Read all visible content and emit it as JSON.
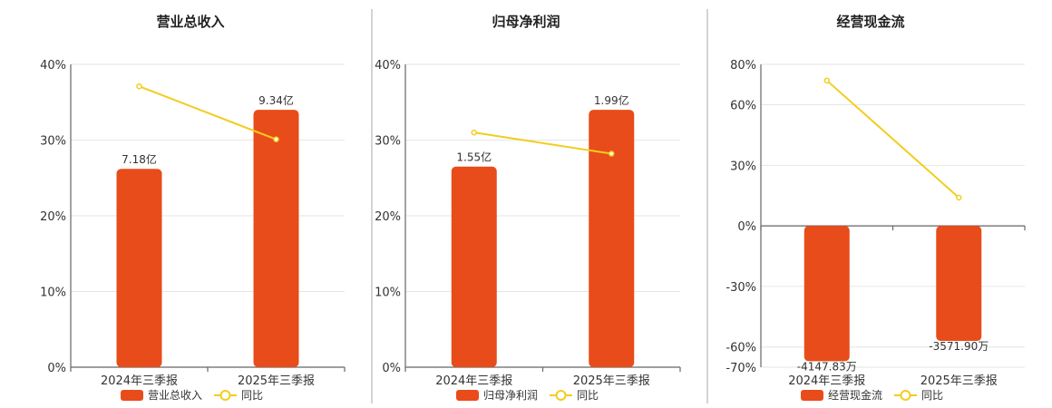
{
  "colors": {
    "bar": "#e84c1a",
    "line": "#f2cd1f"
  },
  "chart_data": [
    {
      "type": "bar",
      "title": "营业总收入",
      "categories": [
        "2024年三季报",
        "2025年三季报"
      ],
      "series": [
        {
          "name": "营业总收入",
          "kind": "bar",
          "values": [
            26.2,
            34.0
          ],
          "labels": [
            "7.18亿",
            "9.34亿"
          ]
        },
        {
          "name": "同比",
          "kind": "line",
          "values": [
            37.1,
            30.1
          ]
        }
      ],
      "yticks": [
        "0%",
        "10%",
        "20%",
        "30%",
        "40%"
      ],
      "ytick_values": [
        0,
        10,
        20,
        30,
        40
      ],
      "ylim": [
        0,
        40
      ],
      "grid": true,
      "legend": "bottom"
    },
    {
      "type": "bar",
      "title": "归母净利润",
      "categories": [
        "2024年三季报",
        "2025年三季报"
      ],
      "series": [
        {
          "name": "归母净利润",
          "kind": "bar",
          "values": [
            26.5,
            34.0
          ],
          "labels": [
            "1.55亿",
            "1.99亿"
          ]
        },
        {
          "name": "同比",
          "kind": "line",
          "values": [
            31.0,
            28.2
          ]
        }
      ],
      "yticks": [
        "0%",
        "10%",
        "20%",
        "30%",
        "40%"
      ],
      "ytick_values": [
        0,
        10,
        20,
        30,
        40
      ],
      "ylim": [
        0,
        40
      ],
      "grid": true,
      "legend": "bottom"
    },
    {
      "type": "bar",
      "title": "经营现金流",
      "categories": [
        "2024年三季报",
        "2025年三季报"
      ],
      "series": [
        {
          "name": "经营现金流",
          "kind": "bar",
          "values": [
            -67.0,
            -57.0
          ],
          "labels": [
            "-4147.83万",
            "-3571.90万"
          ]
        },
        {
          "name": "同比",
          "kind": "line",
          "values": [
            72.0,
            14.0
          ]
        }
      ],
      "yticks": [
        "80%",
        "60%",
        "30%",
        "0%",
        "-30%",
        "-60%",
        "-70%"
      ],
      "ytick_values": [
        80,
        60,
        30,
        0,
        -30,
        -60,
        -70
      ],
      "ylim": [
        -70,
        80
      ],
      "grid": true,
      "legend": "bottom"
    }
  ]
}
